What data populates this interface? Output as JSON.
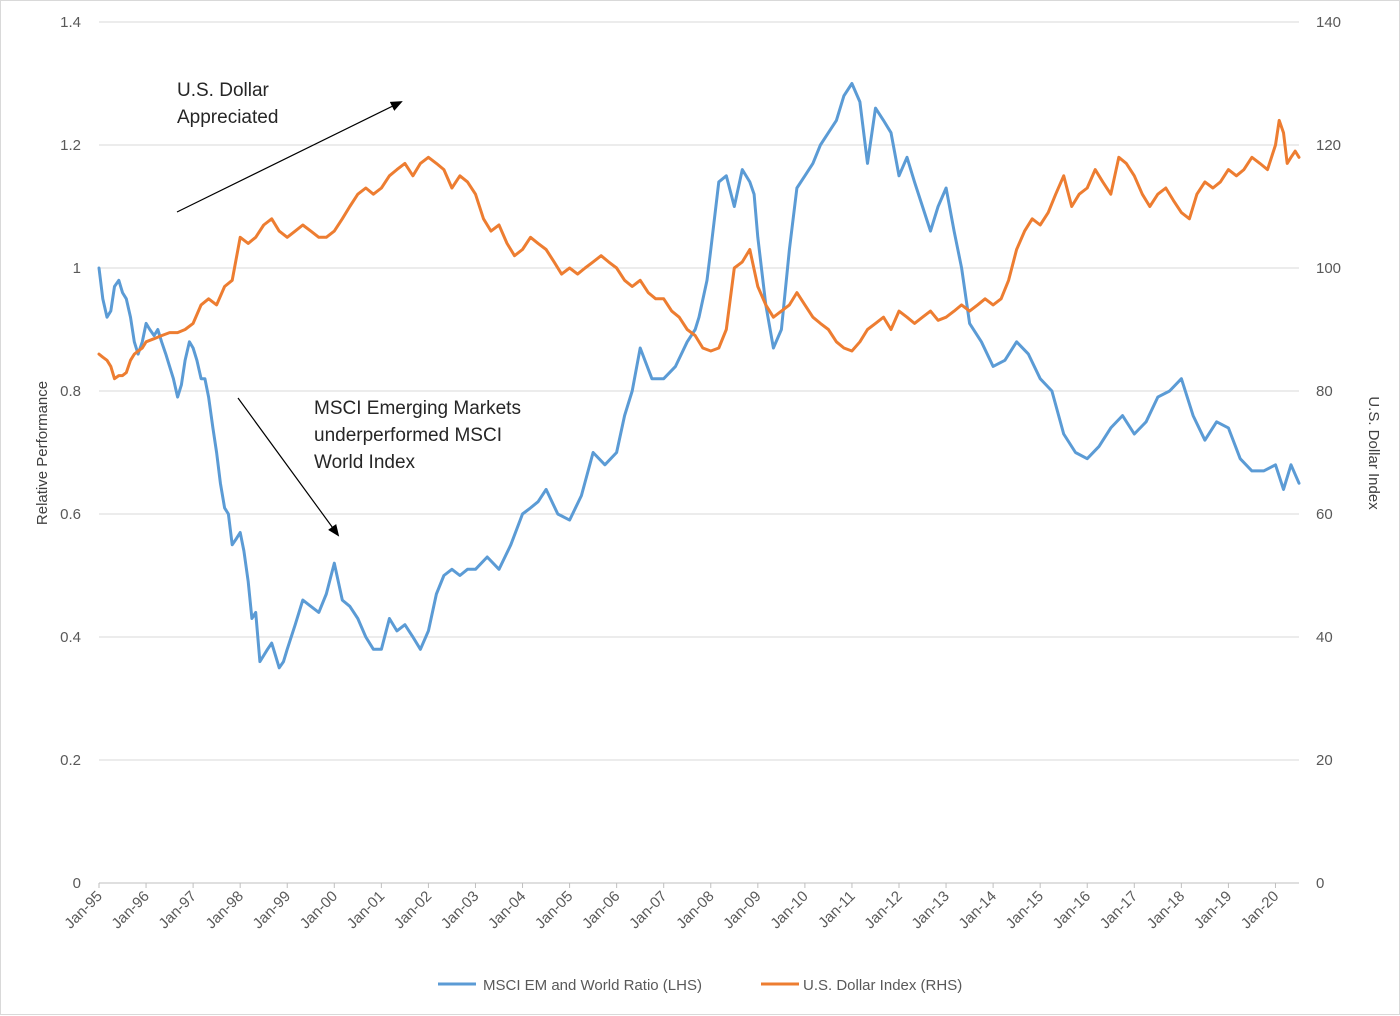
{
  "chart_data": {
    "type": "line",
    "title": "",
    "left_axis": {
      "label": "Relative Performance",
      "min": 0,
      "max": 1.4,
      "ticks": [
        0,
        0.2,
        0.4,
        0.6,
        0.8,
        1,
        1.2,
        1.4
      ]
    },
    "right_axis": {
      "label": "U.S. Dollar Index",
      "min": 0,
      "max": 140,
      "ticks": [
        0,
        20,
        40,
        60,
        80,
        100,
        120,
        140
      ]
    },
    "x_axis": {
      "start": 1995.0,
      "end": 2020.5,
      "tick_labels": [
        "Jan-95",
        "Jan-96",
        "Jan-97",
        "Jan-98",
        "Jan-99",
        "Jan-00",
        "Jan-01",
        "Jan-02",
        "Jan-03",
        "Jan-04",
        "Jan-05",
        "Jan-06",
        "Jan-07",
        "Jan-08",
        "Jan-09",
        "Jan-10",
        "Jan-11",
        "Jan-12",
        "Jan-13",
        "Jan-14",
        "Jan-15",
        "Jan-16",
        "Jan-17",
        "Jan-18",
        "Jan-19",
        "Jan-20"
      ]
    },
    "grid": "horizontal",
    "legend_position": "bottom",
    "series": [
      {
        "name": "MSCI EM and World Ratio (LHS)",
        "axis": "left",
        "color": "#5b9bd5",
        "x": [
          1995.0,
          1995.08,
          1995.17,
          1995.25,
          1995.33,
          1995.42,
          1995.5,
          1995.58,
          1995.67,
          1995.75,
          1995.83,
          1995.92,
          1996.0,
          1996.08,
          1996.17,
          1996.25,
          1996.33,
          1996.42,
          1996.5,
          1996.58,
          1996.67,
          1996.75,
          1996.83,
          1996.92,
          1997.0,
          1997.08,
          1997.17,
          1997.25,
          1997.33,
          1997.42,
          1997.5,
          1997.58,
          1997.67,
          1997.75,
          1997.83,
          1997.92,
          1998.0,
          1998.08,
          1998.17,
          1998.25,
          1998.33,
          1998.42,
          1998.5,
          1998.58,
          1998.67,
          1998.75,
          1998.83,
          1998.92,
          1999.0,
          1999.17,
          1999.33,
          1999.5,
          1999.67,
          1999.83,
          2000.0,
          2000.17,
          2000.33,
          2000.5,
          2000.67,
          2000.83,
          2001.0,
          2001.17,
          2001.33,
          2001.5,
          2001.67,
          2001.83,
          2002.0,
          2002.17,
          2002.33,
          2002.5,
          2002.67,
          2002.83,
          2003.0,
          2003.25,
          2003.5,
          2003.75,
          2004.0,
          2004.17,
          2004.33,
          2004.5,
          2004.75,
          2005.0,
          2005.25,
          2005.5,
          2005.75,
          2006.0,
          2006.17,
          2006.33,
          2006.5,
          2006.75,
          2007.0,
          2007.25,
          2007.5,
          2007.67,
          2007.75,
          2007.92,
          2008.0,
          2008.17,
          2008.33,
          2008.5,
          2008.67,
          2008.83,
          2008.92,
          2009.0,
          2009.17,
          2009.33,
          2009.5,
          2009.67,
          2009.83,
          2010.0,
          2010.17,
          2010.33,
          2010.5,
          2010.67,
          2010.83,
          2011.0,
          2011.17,
          2011.33,
          2011.5,
          2011.67,
          2011.83,
          2012.0,
          2012.17,
          2012.33,
          2012.5,
          2012.67,
          2012.83,
          2013.0,
          2013.17,
          2013.33,
          2013.5,
          2013.75,
          2014.0,
          2014.25,
          2014.5,
          2014.75,
          2015.0,
          2015.25,
          2015.5,
          2015.75,
          2016.0,
          2016.25,
          2016.5,
          2016.75,
          2017.0,
          2017.25,
          2017.5,
          2017.75,
          2018.0,
          2018.25,
          2018.5,
          2018.75,
          2019.0,
          2019.25,
          2019.5,
          2019.75,
          2020.0,
          2020.17,
          2020.33,
          2020.5
        ],
        "values": [
          1.0,
          0.95,
          0.92,
          0.93,
          0.97,
          0.98,
          0.96,
          0.95,
          0.92,
          0.88,
          0.86,
          0.88,
          0.91,
          0.9,
          0.89,
          0.9,
          0.88,
          0.86,
          0.84,
          0.82,
          0.79,
          0.81,
          0.85,
          0.88,
          0.87,
          0.85,
          0.82,
          0.82,
          0.79,
          0.74,
          0.7,
          0.65,
          0.61,
          0.6,
          0.55,
          0.56,
          0.57,
          0.54,
          0.49,
          0.43,
          0.44,
          0.36,
          0.37,
          0.38,
          0.39,
          0.37,
          0.35,
          0.36,
          0.38,
          0.42,
          0.46,
          0.45,
          0.44,
          0.47,
          0.52,
          0.46,
          0.45,
          0.43,
          0.4,
          0.38,
          0.38,
          0.43,
          0.41,
          0.42,
          0.4,
          0.38,
          0.41,
          0.47,
          0.5,
          0.51,
          0.5,
          0.51,
          0.51,
          0.53,
          0.51,
          0.55,
          0.6,
          0.61,
          0.62,
          0.64,
          0.6,
          0.59,
          0.63,
          0.7,
          0.68,
          0.7,
          0.76,
          0.8,
          0.87,
          0.82,
          0.82,
          0.84,
          0.88,
          0.9,
          0.92,
          0.98,
          1.03,
          1.14,
          1.15,
          1.1,
          1.16,
          1.14,
          1.12,
          1.05,
          0.94,
          0.87,
          0.9,
          1.03,
          1.13,
          1.15,
          1.17,
          1.2,
          1.22,
          1.24,
          1.28,
          1.3,
          1.27,
          1.17,
          1.26,
          1.24,
          1.22,
          1.15,
          1.18,
          1.14,
          1.1,
          1.06,
          1.1,
          1.13,
          1.06,
          1.0,
          0.91,
          0.88,
          0.84,
          0.85,
          0.88,
          0.86,
          0.82,
          0.8,
          0.73,
          0.7,
          0.69,
          0.71,
          0.74,
          0.76,
          0.73,
          0.75,
          0.79,
          0.8,
          0.82,
          0.76,
          0.72,
          0.75,
          0.74,
          0.69,
          0.67,
          0.67,
          0.68,
          0.64,
          0.68,
          0.65
        ]
      },
      {
        "name": "U.S. Dollar Index (RHS)",
        "axis": "right",
        "color": "#ed7d31",
        "x": [
          1995.0,
          1995.08,
          1995.17,
          1995.25,
          1995.33,
          1995.42,
          1995.5,
          1995.58,
          1995.67,
          1995.75,
          1995.83,
          1995.92,
          1996.0,
          1996.17,
          1996.33,
          1996.5,
          1996.67,
          1996.83,
          1997.0,
          1997.17,
          1997.33,
          1997.5,
          1997.67,
          1997.83,
          1998.0,
          1998.17,
          1998.33,
          1998.5,
          1998.67,
          1998.83,
          1999.0,
          1999.17,
          1999.33,
          1999.5,
          1999.67,
          1999.83,
          2000.0,
          2000.17,
          2000.33,
          2000.5,
          2000.67,
          2000.83,
          2001.0,
          2001.17,
          2001.33,
          2001.5,
          2001.67,
          2001.83,
          2002.0,
          2002.17,
          2002.33,
          2002.5,
          2002.67,
          2002.83,
          2003.0,
          2003.17,
          2003.33,
          2003.5,
          2003.67,
          2003.83,
          2004.0,
          2004.17,
          2004.33,
          2004.5,
          2004.67,
          2004.83,
          2005.0,
          2005.17,
          2005.33,
          2005.5,
          2005.67,
          2005.83,
          2006.0,
          2006.17,
          2006.33,
          2006.5,
          2006.67,
          2006.83,
          2007.0,
          2007.17,
          2007.33,
          2007.5,
          2007.67,
          2007.83,
          2008.0,
          2008.17,
          2008.33,
          2008.5,
          2008.67,
          2008.83,
          2009.0,
          2009.17,
          2009.33,
          2009.5,
          2009.67,
          2009.83,
          2010.0,
          2010.17,
          2010.33,
          2010.5,
          2010.67,
          2010.83,
          2011.0,
          2011.17,
          2011.33,
          2011.5,
          2011.67,
          2011.83,
          2012.0,
          2012.17,
          2012.33,
          2012.5,
          2012.67,
          2012.83,
          2013.0,
          2013.17,
          2013.33,
          2013.5,
          2013.67,
          2013.83,
          2014.0,
          2014.17,
          2014.33,
          2014.5,
          2014.67,
          2014.83,
          2015.0,
          2015.17,
          2015.33,
          2015.5,
          2015.67,
          2015.83,
          2016.0,
          2016.17,
          2016.33,
          2016.5,
          2016.67,
          2016.83,
          2017.0,
          2017.17,
          2017.33,
          2017.5,
          2017.67,
          2017.83,
          2018.0,
          2018.17,
          2018.33,
          2018.5,
          2018.67,
          2018.83,
          2019.0,
          2019.17,
          2019.33,
          2019.5,
          2019.67,
          2019.83,
          2020.0,
          2020.08,
          2020.17,
          2020.25,
          2020.33,
          2020.42,
          2020.5
        ],
        "values": [
          86,
          85.5,
          85,
          84,
          82,
          82.5,
          82.5,
          83,
          85,
          86,
          86.5,
          87,
          88,
          88.5,
          89,
          89.5,
          89.5,
          90,
          91,
          94,
          95,
          94,
          97,
          98,
          105,
          104,
          105,
          107,
          108,
          106,
          105,
          106,
          107,
          106,
          105,
          105,
          106,
          108,
          110,
          112,
          113,
          112,
          113,
          115,
          116,
          117,
          115,
          117,
          118,
          117,
          116,
          113,
          115,
          114,
          112,
          108,
          106,
          107,
          104,
          102,
          103,
          105,
          104,
          103,
          101,
          99,
          100,
          99,
          100,
          101,
          102,
          101,
          100,
          98,
          97,
          98,
          96,
          95,
          95,
          93,
          92,
          90,
          89,
          87,
          86.5,
          87,
          90,
          100,
          101,
          103,
          97,
          94,
          92,
          93,
          94,
          96,
          94,
          92,
          91,
          90,
          88,
          87,
          86.5,
          88,
          90,
          91,
          92,
          90,
          93,
          92,
          91,
          92,
          93,
          91.5,
          92,
          93,
          94,
          93,
          94,
          95,
          94,
          95,
          98,
          103,
          106,
          108,
          107,
          109,
          112,
          115,
          110,
          112,
          113,
          116,
          114,
          112,
          118,
          117,
          115,
          112,
          110,
          112,
          113,
          111,
          109,
          108,
          112,
          114,
          113,
          114,
          116,
          115,
          116,
          118,
          117,
          116,
          120,
          124,
          122,
          117,
          118,
          119,
          118
        ]
      }
    ],
    "annotations": [
      {
        "lines": [
          "U.S. Dollar",
          "Appreciated"
        ]
      },
      {
        "lines": [
          "MSCI Emerging Markets",
          "underperformed MSCI",
          "World Index"
        ]
      }
    ]
  }
}
